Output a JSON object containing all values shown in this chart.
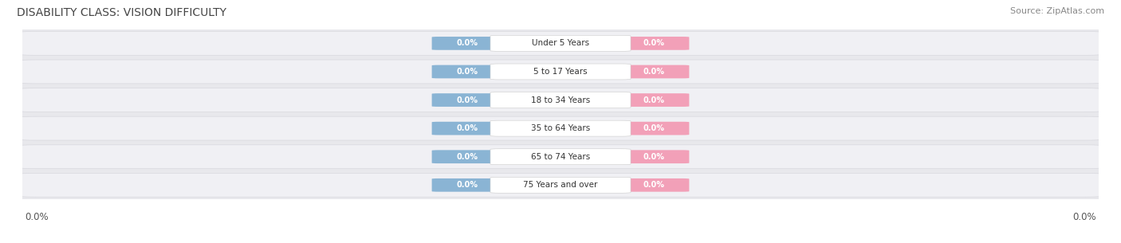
{
  "title": "DISABILITY CLASS: VISION DIFFICULTY",
  "source": "Source: ZipAtlas.com",
  "categories": [
    "Under 5 Years",
    "5 to 17 Years",
    "18 to 34 Years",
    "35 to 64 Years",
    "65 to 74 Years",
    "75 Years and over"
  ],
  "male_values": [
    0.0,
    0.0,
    0.0,
    0.0,
    0.0,
    0.0
  ],
  "female_values": [
    0.0,
    0.0,
    0.0,
    0.0,
    0.0,
    0.0
  ],
  "male_color": "#8ab4d4",
  "female_color": "#f2a0b8",
  "row_pill_color": "#f0f0f4",
  "outer_bg_color": "#e8e8ec",
  "title_fontsize": 10,
  "source_fontsize": 8,
  "tick_label": "0.0%",
  "background_color": "#ffffff"
}
